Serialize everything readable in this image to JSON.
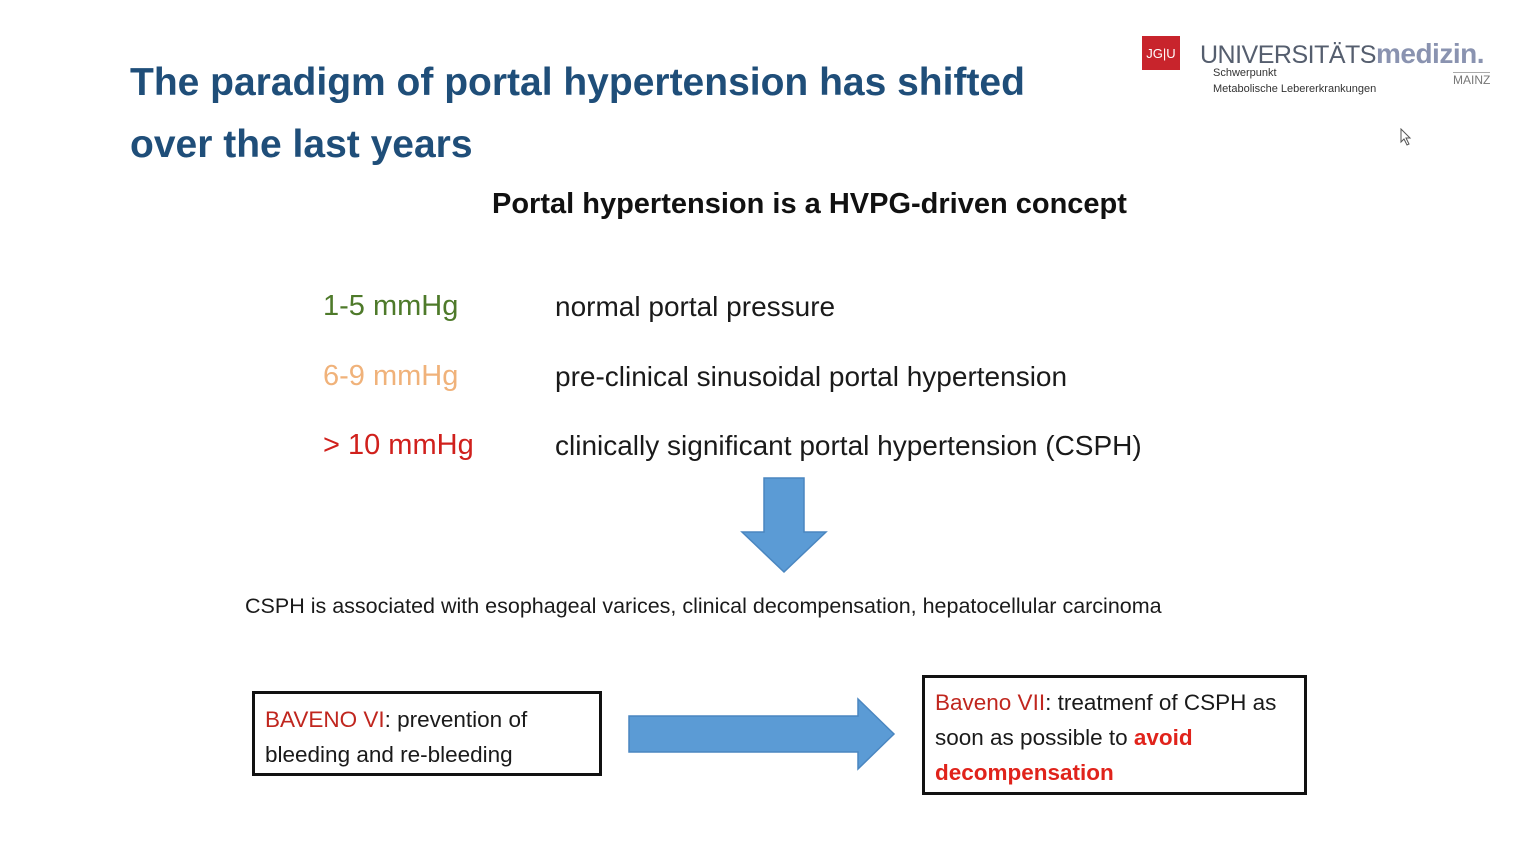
{
  "slide": {
    "title": "The paradigm of portal hypertension has shifted over the last years",
    "subtitle": "Portal hypertension is a HVPG-driven concept",
    "ranges": [
      {
        "range": "1-5 mmHg",
        "description": "normal portal pressure",
        "color": "#4e7a2a"
      },
      {
        "range": "6-9 mmHg",
        "description": "pre-clinical sinusoidal portal hypertension",
        "color": "#f0b27a"
      },
      {
        "range": "> 10 mmHg",
        "description": "clinically significant portal hypertension (CSPH)",
        "color": "#d0201c"
      }
    ],
    "association": "CSPH is associated with esophageal varices, clinical decompensation, hepatocellular carcinoma",
    "box1": {
      "label": "BAVENO VI",
      "text": ": prevention of bleeding and re-bleeding"
    },
    "box2": {
      "label": "Baveno VII",
      "text": ": treatmenf of CSPH as soon as possible to ",
      "emphasis": "avoid decompensation"
    },
    "arrow_color": "#5b9bd5"
  },
  "logo": {
    "badge": "JG|U",
    "name_regular": "UNIVERSITÄTS",
    "name_bold": "medizin.",
    "line1": "Schwerpunkt",
    "line2": "Metabolische Lebererkrankungen",
    "city": "MAINZ"
  }
}
